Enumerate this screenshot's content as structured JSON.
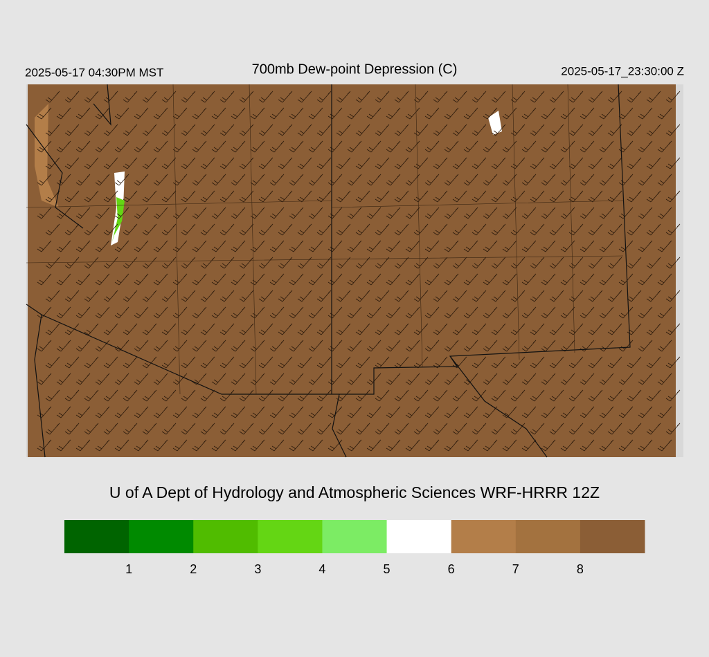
{
  "header": {
    "left": "2025-05-17 04:30PM MST",
    "title": "700mb Dew-point Depression (C)",
    "right": "2025-05-17_23:30:00 Z"
  },
  "credit": "U of A Dept of Hydrology and Atmospheric Sciences WRF-HRRR 12Z",
  "colorbar": {
    "colors": [
      "#006400",
      "#008a00",
      "#50bc00",
      "#64d614",
      "#7cec64",
      "#ffffff",
      "#b37e49",
      "#a3723f",
      "#8b5e36"
    ],
    "ticks": [
      1,
      2,
      3,
      4,
      5,
      6,
      7,
      8
    ]
  }
}
